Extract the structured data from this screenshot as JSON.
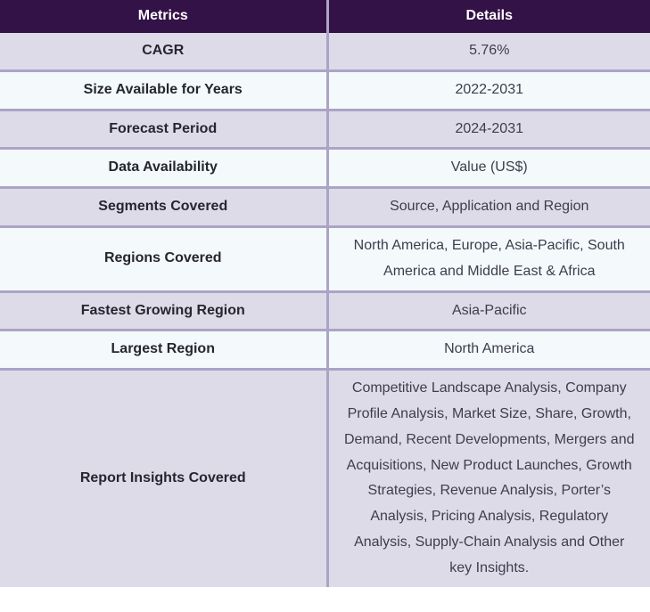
{
  "table": {
    "title": "Market report scope table",
    "colors": {
      "header_bg": "#331247",
      "header_text": "#ffffff",
      "row_odd_bg": "#dedbe9",
      "row_even_bg": "#f4f9fb",
      "border": "#aba4c6",
      "metric_text": "#26262e",
      "detail_text": "#3d3d4d"
    },
    "header": {
      "metrics": "Metrics",
      "details": "Details"
    },
    "rows": [
      {
        "metric": "CAGR",
        "detail": "5.76%"
      },
      {
        "metric": "Size Available for Years",
        "detail": "2022-2031"
      },
      {
        "metric": "Forecast Period",
        "detail": "2024-2031"
      },
      {
        "metric": "Data Availability",
        "detail": "Value (US$)"
      },
      {
        "metric": "Segments Covered",
        "detail": "Source, Application and Region"
      },
      {
        "metric": "Regions Covered",
        "detail": "North America, Europe, Asia-Pacific, South America and Middle East & Africa"
      },
      {
        "metric": "Fastest Growing Region",
        "detail": "Asia-Pacific"
      },
      {
        "metric": "Largest Region",
        "detail": "North America"
      },
      {
        "metric": "Report Insights Covered",
        "detail": "Competitive Landscape Analysis, Company Profile Analysis, Market Size, Share, Growth, Demand, Recent Developments, Mergers and Acquisitions, New Product Launches, Growth Strategies, Revenue Analysis, Porter’s Analysis, Pricing Analysis, Regulatory Analysis, Supply-Chain Analysis and Other key Insights."
      }
    ]
  }
}
